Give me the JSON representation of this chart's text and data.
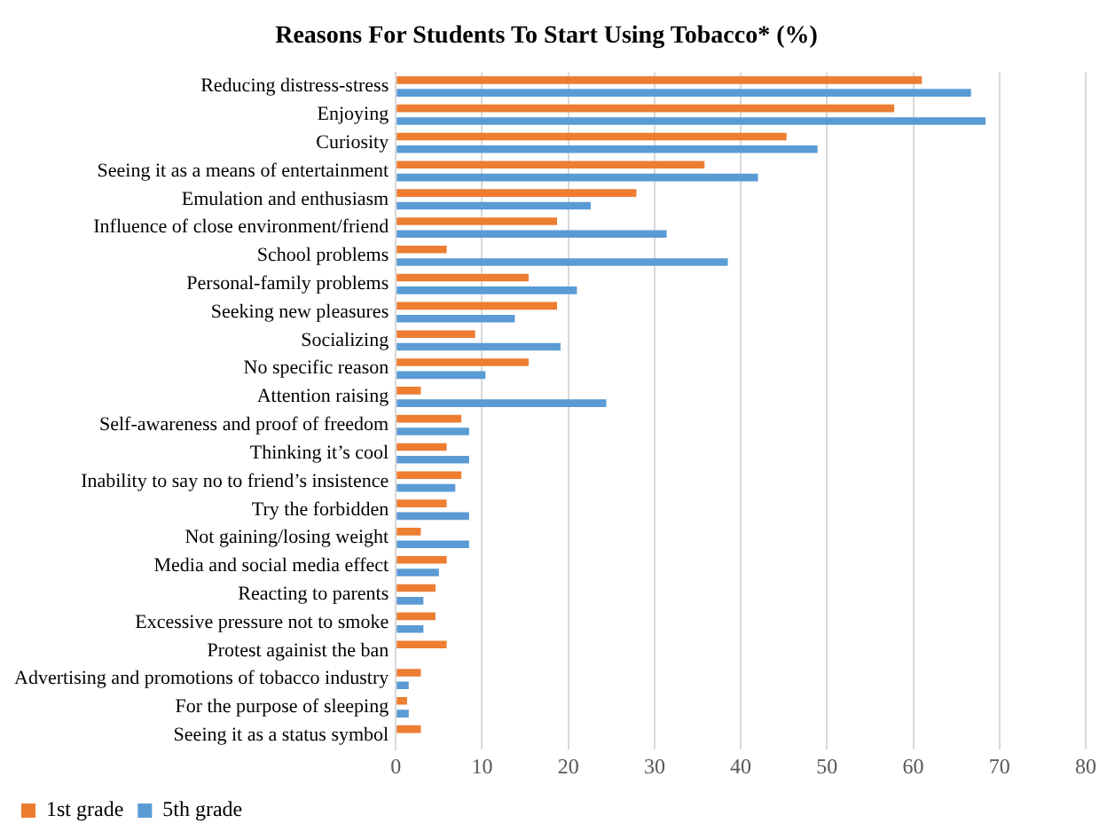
{
  "chart_data": {
    "type": "bar",
    "orientation": "horizontal",
    "title": "Reasons For Students To Start Using Tobacco* (%)",
    "categories": [
      "Reducing distress-stress",
      "Enjoying",
      "Curiosity",
      "Seeing it as a means of entertainment",
      "Emulation and enthusiasm",
      "Influence of close environment/friend",
      "School problems",
      "Personal-family problems",
      "Seeking new pleasures",
      "Socializing",
      "No specific reason",
      "Attention raising",
      "Self-awareness and proof of freedom",
      "Thinking it’s cool",
      "Inability to say no to friend’s insistence",
      "Try the forbidden",
      "Not gaining/losing weight",
      "Media and social media effect",
      "Reacting to parents",
      "Excessive pressure not to smoke",
      "Protest againist the ban",
      "Advertising and promotions of tobacco industry",
      "For the purpose of sleeping",
      "Seeing it as a status symbol"
    ],
    "series": [
      {
        "name": "1st grade",
        "color": "#ed7d31",
        "values": [
          61,
          57.8,
          45.3,
          35.8,
          27.9,
          18.7,
          5.9,
          15.4,
          18.7,
          9.2,
          15.4,
          2.9,
          7.6,
          5.9,
          7.6,
          5.9,
          2.9,
          5.9,
          4.6,
          4.6,
          5.9,
          2.9,
          1.3,
          2.9
        ]
      },
      {
        "name": "5th grade",
        "color": "#5b9bd5",
        "values": [
          66.7,
          68.4,
          48.9,
          42,
          22.6,
          31.4,
          38.5,
          21,
          13.8,
          19.1,
          10.4,
          24.4,
          8.5,
          8.5,
          6.9,
          8.5,
          8.5,
          5,
          3.2,
          3.2,
          null,
          1.5,
          1.5,
          null
        ]
      }
    ],
    "xlim": [
      0,
      80
    ],
    "xticks": [
      0,
      10,
      20,
      30,
      40,
      50,
      60,
      70,
      80
    ],
    "grid": "x",
    "legend": "bottom left"
  }
}
